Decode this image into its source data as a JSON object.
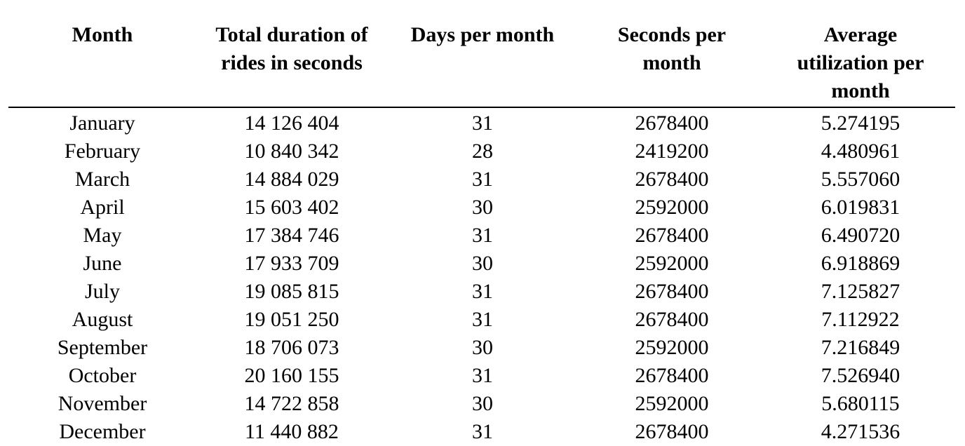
{
  "table": {
    "headers": [
      "Month",
      "Total duration of rides in seconds",
      "Days per month",
      "Seconds per month",
      "Average utilization per month"
    ],
    "rows": [
      [
        "January",
        "14 126 404",
        "31",
        "2678400",
        "5.274195"
      ],
      [
        "February",
        "10 840 342",
        "28",
        "2419200",
        "4.480961"
      ],
      [
        "March",
        "14 884 029",
        "31",
        "2678400",
        "5.557060"
      ],
      [
        "April",
        "15 603 402",
        "30",
        "2592000",
        "6.019831"
      ],
      [
        "May",
        "17 384 746",
        "31",
        "2678400",
        "6.490720"
      ],
      [
        "June",
        "17 933 709",
        "30",
        "2592000",
        "6.918869"
      ],
      [
        "July",
        "19 085 815",
        "31",
        "2678400",
        "7.125827"
      ],
      [
        "August",
        "19 051 250",
        "31",
        "2678400",
        "7.112922"
      ],
      [
        "September",
        "18 706 073",
        "30",
        "2592000",
        "7.216849"
      ],
      [
        "October",
        "20 160 155",
        "31",
        "2678400",
        "7.526940"
      ],
      [
        "November",
        "14 722 858",
        "30",
        "2592000",
        "5.680115"
      ],
      [
        "December",
        "11 440 882",
        "31",
        "2678400",
        "4.271536"
      ]
    ]
  }
}
